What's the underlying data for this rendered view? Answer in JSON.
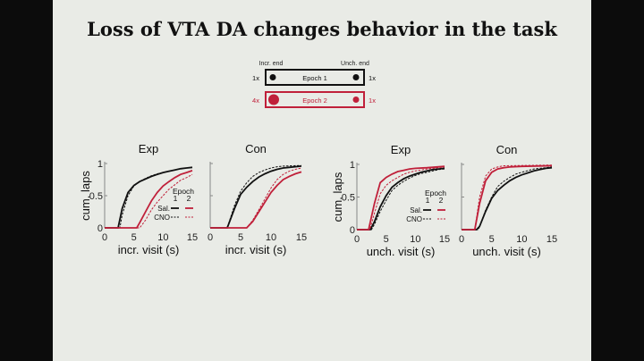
{
  "title": "Loss of VTA DA changes behavior in the task",
  "colors": {
    "epoch1": "#111111",
    "epoch2": "#c0203a",
    "slide_bg": "#e9ebe6"
  },
  "schematic": {
    "left_label": "Incr. end",
    "right_label": "Unch. end",
    "rows": [
      {
        "label": "Epoch 1",
        "left_mult": "1x",
        "right_mult": "1x",
        "color": "#111111"
      },
      {
        "label": "Epoch 2",
        "left_mult": "4x",
        "right_mult": "1x",
        "color": "#c0203a"
      }
    ]
  },
  "legend": {
    "header": "Epoch",
    "col1": "1",
    "col2": "2",
    "row1": "Sal.",
    "row2": "CNO"
  },
  "chart_data": [
    {
      "type": "line",
      "title": "Exp",
      "xlabel": "incr. visit (s)",
      "ylabel": "cum. laps",
      "xlim": [
        0,
        15
      ],
      "ylim": [
        0,
        1
      ],
      "xticks": [
        "0",
        "5",
        "10",
        "15"
      ],
      "yticks": [
        "0",
        "0.5",
        "1"
      ],
      "legend": "right",
      "series": [
        {
          "name": "Sal. 1",
          "color": "#111111",
          "dash": false,
          "points": [
            [
              0,
              0
            ],
            [
              2.3,
              0
            ],
            [
              3,
              0.3
            ],
            [
              4,
              0.55
            ],
            [
              5,
              0.66
            ],
            [
              6,
              0.72
            ],
            [
              7,
              0.76
            ],
            [
              8,
              0.8
            ],
            [
              9,
              0.83
            ],
            [
              10,
              0.86
            ],
            [
              11,
              0.88
            ],
            [
              12,
              0.9
            ],
            [
              13,
              0.92
            ],
            [
              14,
              0.93
            ],
            [
              15,
              0.94
            ]
          ]
        },
        {
          "name": "CNO 1",
          "color": "#111111",
          "dash": true,
          "points": [
            [
              0,
              0
            ],
            [
              2.6,
              0
            ],
            [
              3,
              0.2
            ],
            [
              4,
              0.5
            ],
            [
              5,
              0.65
            ],
            [
              6,
              0.72
            ],
            [
              7,
              0.77
            ],
            [
              8,
              0.81
            ],
            [
              9,
              0.84
            ],
            [
              10,
              0.86
            ],
            [
              11,
              0.88
            ],
            [
              12,
              0.9
            ],
            [
              13,
              0.92
            ],
            [
              14,
              0.93
            ],
            [
              15,
              0.94
            ]
          ]
        },
        {
          "name": "Sal. 2",
          "color": "#c0203a",
          "dash": false,
          "points": [
            [
              0,
              0
            ],
            [
              5.5,
              0
            ],
            [
              6,
              0.08
            ],
            [
              7,
              0.25
            ],
            [
              8,
              0.42
            ],
            [
              9,
              0.55
            ],
            [
              10,
              0.65
            ],
            [
              11,
              0.72
            ],
            [
              12,
              0.78
            ],
            [
              13,
              0.83
            ],
            [
              14,
              0.86
            ],
            [
              15,
              0.89
            ]
          ]
        },
        {
          "name": "CNO 2",
          "color": "#c0203a",
          "dash": true,
          "points": [
            [
              0,
              0
            ],
            [
              6,
              0
            ],
            [
              7,
              0.12
            ],
            [
              8,
              0.28
            ],
            [
              9,
              0.4
            ],
            [
              10,
              0.5
            ],
            [
              11,
              0.6
            ],
            [
              12,
              0.67
            ],
            [
              13,
              0.74
            ],
            [
              14,
              0.78
            ],
            [
              15,
              0.83
            ]
          ]
        }
      ]
    },
    {
      "type": "line",
      "title": "Con",
      "xlabel": "incr. visit (s)",
      "ylabel": "",
      "xlim": [
        0,
        15
      ],
      "ylim": [
        0,
        1
      ],
      "xticks": [
        "0",
        "5",
        "10",
        "15"
      ],
      "yticks": [],
      "series": [
        {
          "name": "Sal. 1",
          "color": "#111111",
          "dash": false,
          "points": [
            [
              0,
              0
            ],
            [
              2.8,
              0
            ],
            [
              3,
              0.05
            ],
            [
              4,
              0.3
            ],
            [
              5,
              0.52
            ],
            [
              6,
              0.63
            ],
            [
              7,
              0.72
            ],
            [
              8,
              0.79
            ],
            [
              9,
              0.84
            ],
            [
              10,
              0.88
            ],
            [
              11,
              0.91
            ],
            [
              12,
              0.93
            ],
            [
              13,
              0.94
            ],
            [
              14,
              0.95
            ],
            [
              15,
              0.96
            ]
          ]
        },
        {
          "name": "CNO 1",
          "color": "#111111",
          "dash": true,
          "points": [
            [
              0,
              0
            ],
            [
              2.8,
              0
            ],
            [
              4,
              0.35
            ],
            [
              5,
              0.57
            ],
            [
              6,
              0.7
            ],
            [
              7,
              0.8
            ],
            [
              8,
              0.86
            ],
            [
              9,
              0.9
            ],
            [
              10,
              0.93
            ],
            [
              11,
              0.95
            ],
            [
              12,
              0.96
            ],
            [
              15,
              0.97
            ]
          ]
        },
        {
          "name": "Sal. 2",
          "color": "#c0203a",
          "dash": false,
          "points": [
            [
              0,
              0
            ],
            [
              6,
              0
            ],
            [
              7,
              0.1
            ],
            [
              8,
              0.25
            ],
            [
              9,
              0.4
            ],
            [
              10,
              0.55
            ],
            [
              11,
              0.66
            ],
            [
              12,
              0.75
            ],
            [
              13,
              0.8
            ],
            [
              14,
              0.84
            ],
            [
              15,
              0.87
            ]
          ]
        },
        {
          "name": "CNO 2",
          "color": "#c0203a",
          "dash": true,
          "points": [
            [
              0,
              0
            ],
            [
              6,
              0
            ],
            [
              7,
              0.12
            ],
            [
              8,
              0.28
            ],
            [
              9,
              0.45
            ],
            [
              10,
              0.62
            ],
            [
              11,
              0.75
            ],
            [
              12,
              0.83
            ],
            [
              13,
              0.88
            ],
            [
              14,
              0.91
            ],
            [
              15,
              0.93
            ]
          ]
        }
      ]
    },
    {
      "type": "line",
      "title": "Exp",
      "xlabel": "unch. visit (s)",
      "ylabel": "cum. laps",
      "xlim": [
        0,
        15
      ],
      "ylim": [
        0,
        1
      ],
      "xticks": [
        "0",
        "5",
        "10",
        "15"
      ],
      "yticks": [
        "0",
        "0.5",
        "1"
      ],
      "legend": "right",
      "series": [
        {
          "name": "Sal. 1",
          "color": "#111111",
          "dash": false,
          "points": [
            [
              0,
              0
            ],
            [
              2.3,
              0
            ],
            [
              3,
              0.12
            ],
            [
              4,
              0.35
            ],
            [
              5,
              0.52
            ],
            [
              6,
              0.65
            ],
            [
              7,
              0.72
            ],
            [
              8,
              0.78
            ],
            [
              9,
              0.82
            ],
            [
              10,
              0.85
            ],
            [
              11,
              0.88
            ],
            [
              12,
              0.9
            ],
            [
              13,
              0.92
            ],
            [
              14,
              0.93
            ],
            [
              15,
              0.94
            ]
          ]
        },
        {
          "name": "CNO 1",
          "color": "#111111",
          "dash": true,
          "points": [
            [
              0,
              0
            ],
            [
              2.5,
              0
            ],
            [
              3,
              0.08
            ],
            [
              4,
              0.28
            ],
            [
              5,
              0.45
            ],
            [
              6,
              0.6
            ],
            [
              7,
              0.68
            ],
            [
              8,
              0.74
            ],
            [
              9,
              0.79
            ],
            [
              10,
              0.83
            ],
            [
              11,
              0.86
            ],
            [
              12,
              0.88
            ],
            [
              13,
              0.9
            ],
            [
              14,
              0.92
            ],
            [
              15,
              0.93
            ]
          ]
        },
        {
          "name": "Sal. 2",
          "color": "#c0203a",
          "dash": false,
          "points": [
            [
              0,
              0
            ],
            [
              2,
              0
            ],
            [
              3,
              0.4
            ],
            [
              4,
              0.72
            ],
            [
              5,
              0.8
            ],
            [
              6,
              0.85
            ],
            [
              7,
              0.89
            ],
            [
              8,
              0.91
            ],
            [
              9,
              0.93
            ],
            [
              10,
              0.94
            ],
            [
              12,
              0.95
            ],
            [
              15,
              0.97
            ]
          ]
        },
        {
          "name": "CNO 2",
          "color": "#c0203a",
          "dash": true,
          "points": [
            [
              0,
              0
            ],
            [
              2.2,
              0
            ],
            [
              3,
              0.25
            ],
            [
              4,
              0.55
            ],
            [
              5,
              0.68
            ],
            [
              6,
              0.75
            ],
            [
              7,
              0.8
            ],
            [
              8,
              0.85
            ],
            [
              9,
              0.88
            ],
            [
              10,
              0.9
            ],
            [
              12,
              0.93
            ],
            [
              15,
              0.96
            ]
          ]
        }
      ]
    },
    {
      "type": "line",
      "title": "Con",
      "xlabel": "unch. visit (s)",
      "ylabel": "",
      "xlim": [
        0,
        15
      ],
      "ylim": [
        0,
        1
      ],
      "xticks": [
        "0",
        "5",
        "10",
        "15"
      ],
      "yticks": [],
      "series": [
        {
          "name": "Sal. 1",
          "color": "#111111",
          "dash": false,
          "points": [
            [
              0,
              0
            ],
            [
              2.5,
              0
            ],
            [
              3,
              0.05
            ],
            [
              4,
              0.28
            ],
            [
              5,
              0.48
            ],
            [
              6,
              0.6
            ],
            [
              7,
              0.68
            ],
            [
              8,
              0.75
            ],
            [
              9,
              0.8
            ],
            [
              10,
              0.84
            ],
            [
              11,
              0.87
            ],
            [
              12,
              0.9
            ],
            [
              13,
              0.92
            ],
            [
              14,
              0.94
            ],
            [
              15,
              0.95
            ]
          ]
        },
        {
          "name": "CNO 1",
          "color": "#111111",
          "dash": true,
          "points": [
            [
              0,
              0
            ],
            [
              2.8,
              0
            ],
            [
              4,
              0.3
            ],
            [
              5,
              0.5
            ],
            [
              6,
              0.66
            ],
            [
              7,
              0.74
            ],
            [
              8,
              0.8
            ],
            [
              9,
              0.85
            ],
            [
              10,
              0.88
            ],
            [
              12,
              0.93
            ],
            [
              15,
              0.96
            ]
          ]
        },
        {
          "name": "Sal. 2",
          "color": "#c0203a",
          "dash": false,
          "points": [
            [
              0,
              0
            ],
            [
              2.2,
              0
            ],
            [
              3,
              0.4
            ],
            [
              4,
              0.75
            ],
            [
              5,
              0.88
            ],
            [
              6,
              0.93
            ],
            [
              7,
              0.95
            ],
            [
              8,
              0.96
            ],
            [
              10,
              0.97
            ],
            [
              15,
              0.98
            ]
          ]
        },
        {
          "name": "CNO 2",
          "color": "#c0203a",
          "dash": true,
          "points": [
            [
              0,
              0
            ],
            [
              2.2,
              0
            ],
            [
              3,
              0.5
            ],
            [
              4,
              0.82
            ],
            [
              5,
              0.93
            ],
            [
              6,
              0.96
            ],
            [
              7,
              0.98
            ],
            [
              15,
              0.99
            ]
          ]
        }
      ]
    }
  ]
}
